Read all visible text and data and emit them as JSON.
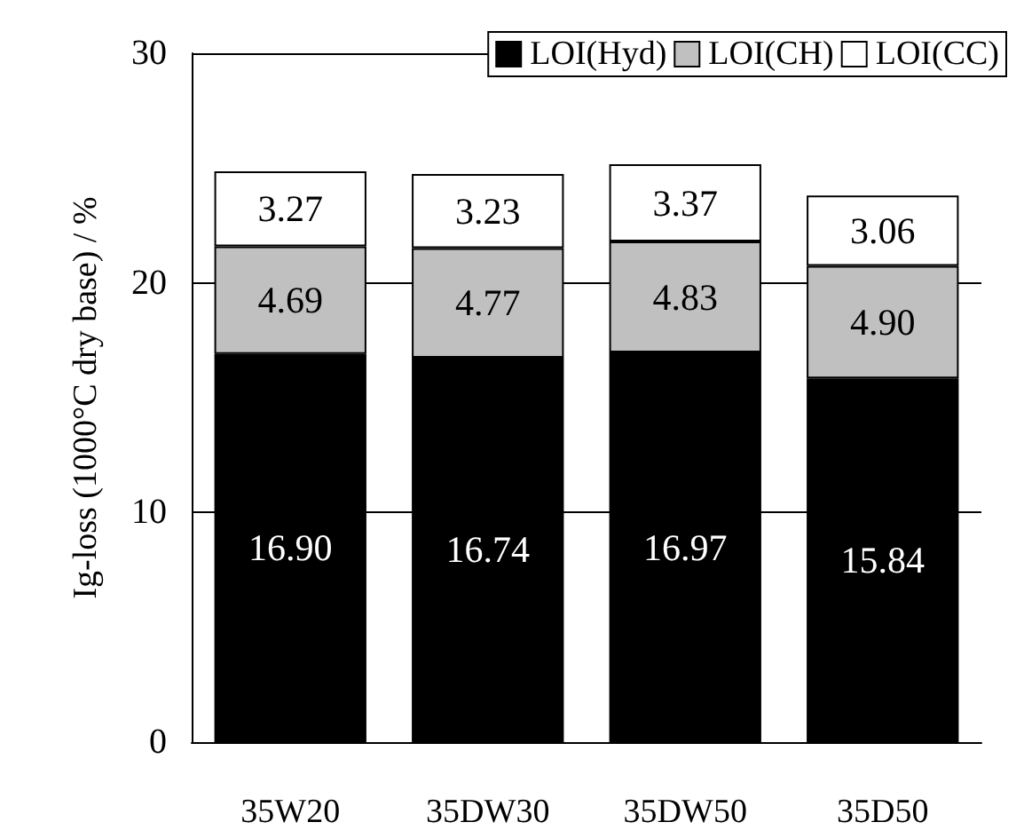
{
  "chart_data": {
    "type": "bar",
    "stacked": true,
    "ylabel": "Ig-loss (1000°C dry base) / %",
    "categories": [
      "35W20",
      "35DW30",
      "35DW50",
      "35D50"
    ],
    "series": [
      {
        "name": "LOI(Hyd)",
        "color": "#000000",
        "values": [
          16.9,
          16.74,
          16.97,
          15.84
        ],
        "value_labels": [
          "16.90",
          "16.74",
          "16.97",
          "15.84"
        ]
      },
      {
        "name": "LOI(CH)",
        "color": "#c0c0c0",
        "values": [
          4.69,
          4.77,
          4.83,
          4.9
        ],
        "value_labels": [
          "4.69",
          "4.77",
          "4.83",
          "4.90"
        ]
      },
      {
        "name": "LOI(CC)",
        "color": "#ffffff",
        "values": [
          3.27,
          3.23,
          3.37,
          3.06
        ],
        "value_labels": [
          "3.27",
          "3.23",
          "3.37",
          "3.06"
        ]
      }
    ],
    "ylim": [
      0,
      30
    ],
    "yticks": [
      0,
      10,
      20,
      30
    ],
    "grid": "y",
    "legend": "top right"
  }
}
